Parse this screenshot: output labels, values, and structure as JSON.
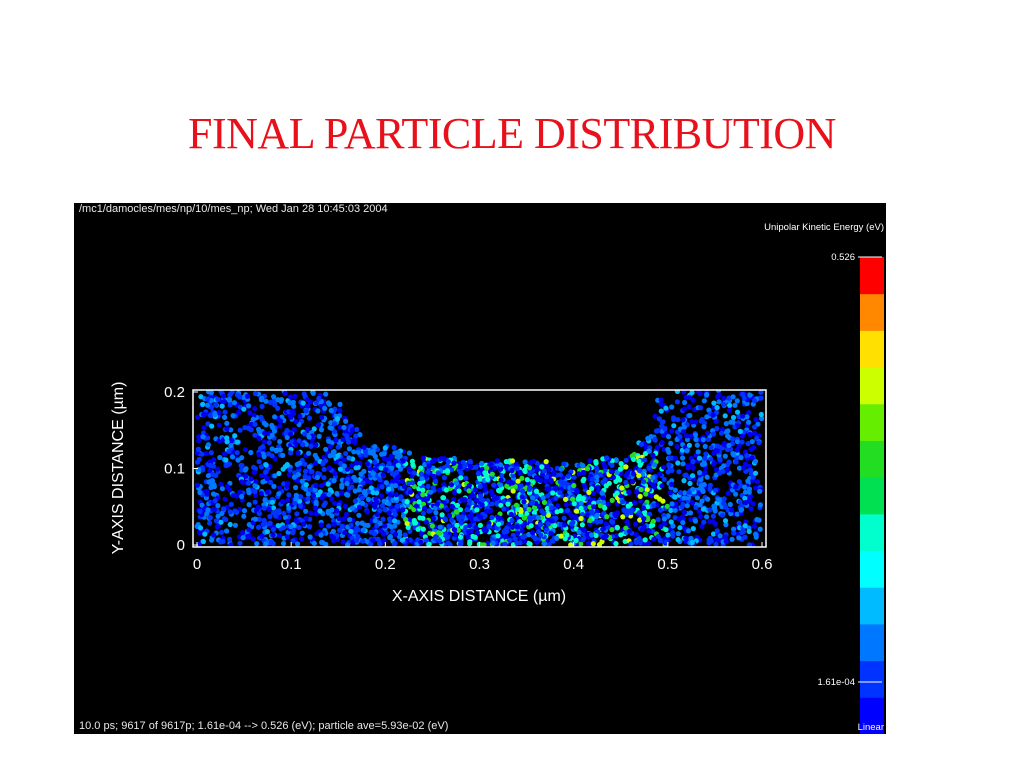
{
  "slide": {
    "title": "FINAL PARTICLE DISTRIBUTION"
  },
  "window": {
    "header": "/mc1/damocles/mes/np/10/mes_np; Wed Jan 28 10:45:03 2004",
    "footer": "10.0 ps; 9617 of 9617p; 1.61e-04 --> 0.526 (eV); particle ave=5.93e-02 (eV)"
  },
  "colorbar": {
    "title": "Unipolar Kinetic Energy  (eV)",
    "max_label": "0.526",
    "min_label": "1.61e-04",
    "scale_label": "Linear",
    "colors": [
      "#0000ff",
      "#0033ff",
      "#0077ff",
      "#00bbff",
      "#00ffff",
      "#00ffcc",
      "#00e050",
      "#22dd22",
      "#66ee00",
      "#ccff00",
      "#ffe000",
      "#ff8800",
      "#ff0000"
    ]
  },
  "chart_data": {
    "type": "scatter",
    "xlabel": "X-AXIS DISTANCE  (µm)",
    "ylabel": "Y-AXIS DISTANCE  (µm)",
    "xlim": [
      0,
      0.6
    ],
    "ylim": [
      0,
      0.2
    ],
    "xticks": [
      "0",
      "0.1",
      "0.2",
      "0.3",
      "0.4",
      "0.5",
      "0.6"
    ],
    "yticks": [
      "0",
      "0.1",
      "0.2"
    ],
    "particle_count": 9617,
    "energy_min_eV": 0.000161,
    "energy_max_eV": 0.526,
    "energy_mean_eV": 0.0593,
    "filled_region_profile": {
      "x": [
        0,
        0.14,
        0.18,
        0.25,
        0.3,
        0.4,
        0.45,
        0.48,
        0.49,
        0.6
      ],
      "y_top": [
        0.2,
        0.2,
        0.13,
        0.115,
        0.11,
        0.105,
        0.115,
        0.14,
        0.2,
        0.2
      ]
    }
  }
}
